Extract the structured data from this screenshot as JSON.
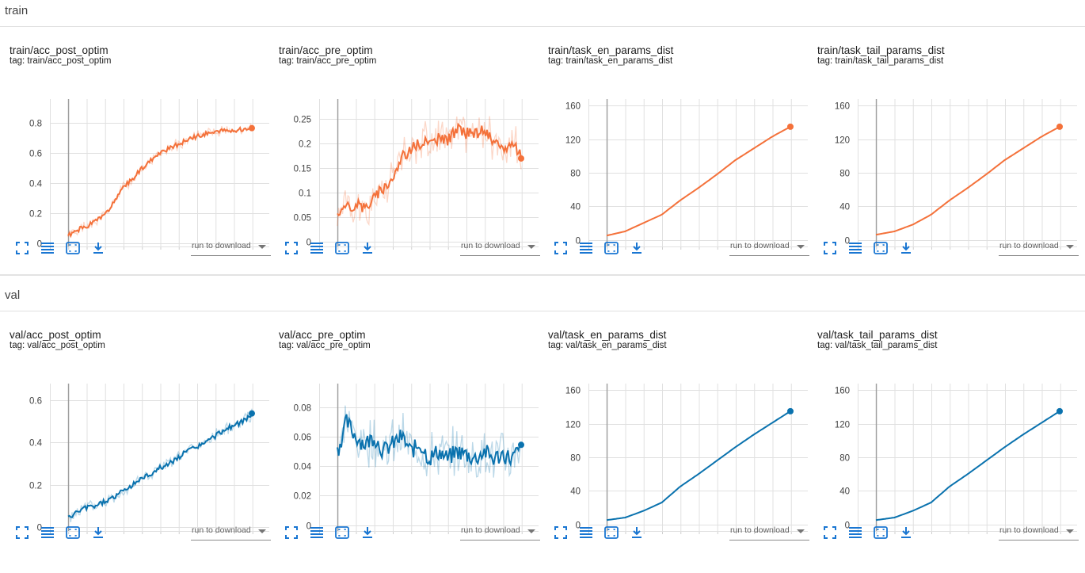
{
  "colors": {
    "train": "#f4713a",
    "val": "#0a72ae",
    "icon": "#1976d2"
  },
  "run_select_label": "run to download",
  "groups": [
    {
      "name": "train",
      "color": "#f4713a",
      "cards": [
        {
          "title": "train/acc_post_optim",
          "tag": "tag: train/acc_post_optim",
          "chart_data": {
            "type": "line",
            "yticks": [
              "0",
              "0.2",
              "0.4",
              "0.6",
              "0.8"
            ],
            "ymin": -0.02,
            "ymax": 0.96,
            "x": [
              0,
              0.05,
              0.1,
              0.15,
              0.2,
              0.25,
              0.3,
              0.35,
              0.4,
              0.45,
              0.5,
              0.55,
              0.6,
              0.65,
              0.7,
              0.75,
              0.8,
              0.85,
              0.9,
              0.95,
              1.0
            ],
            "y": [
              0.05,
              0.09,
              0.11,
              0.15,
              0.19,
              0.27,
              0.37,
              0.43,
              0.5,
              0.55,
              0.6,
              0.63,
              0.66,
              0.69,
              0.71,
              0.73,
              0.74,
              0.75,
              0.75,
              0.76,
              0.77
            ],
            "noise": 0.015,
            "raw_noise": 0.03,
            "seed": 1
          }
        },
        {
          "title": "train/acc_pre_optim",
          "tag": "tag: train/acc_pre_optim",
          "chart_data": {
            "type": "line",
            "yticks": [
              "0",
              "0.05",
              "0.1",
              "0.15",
              "0.2",
              "0.25"
            ],
            "ymin": -0.01,
            "ymax": 0.29,
            "x": [
              0,
              0.05,
              0.1,
              0.15,
              0.2,
              0.25,
              0.3,
              0.35,
              0.4,
              0.45,
              0.5,
              0.55,
              0.6,
              0.65,
              0.7,
              0.75,
              0.8,
              0.85,
              0.9,
              0.95,
              1.0
            ],
            "y": [
              0.06,
              0.07,
              0.075,
              0.07,
              0.09,
              0.11,
              0.13,
              0.17,
              0.19,
              0.2,
              0.2,
              0.21,
              0.205,
              0.23,
              0.22,
              0.22,
              0.23,
              0.2,
              0.19,
              0.2,
              0.175
            ],
            "noise": 0.012,
            "raw_noise": 0.035,
            "seed": 2
          }
        },
        {
          "title": "train/task_en_params_dist",
          "tag": "tag: train/task_en_params_dist",
          "chart_data": {
            "type": "line",
            "yticks": [
              "0",
              "40",
              "80",
              "120",
              "160"
            ],
            "ymin": -8,
            "ymax": 168,
            "x": [
              0,
              0.1,
              0.2,
              0.3,
              0.4,
              0.5,
              0.6,
              0.7,
              0.8,
              0.9,
              1.0
            ],
            "y": [
              5,
              10,
              20,
              30,
              47,
              62,
              78,
              95,
              109,
              123,
              135
            ],
            "noise": 0,
            "raw_noise": 0,
            "seed": 3
          }
        },
        {
          "title": "train/task_tail_params_dist",
          "tag": "tag: train/task_tail_params_dist",
          "chart_data": {
            "type": "line",
            "yticks": [
              "0",
              "40",
              "80",
              "120",
              "160"
            ],
            "ymin": -8,
            "ymax": 168,
            "x": [
              0,
              0.1,
              0.2,
              0.3,
              0.4,
              0.5,
              0.6,
              0.7,
              0.8,
              0.9,
              1.0
            ],
            "y": [
              6,
              10,
              18,
              30,
              47,
              62,
              78,
              95,
              109,
              123,
              135
            ],
            "noise": 0,
            "raw_noise": 0,
            "seed": 4
          }
        }
      ]
    },
    {
      "name": "val",
      "color": "#0a72ae",
      "cards": [
        {
          "title": "val/acc_post_optim",
          "tag": "tag: val/acc_post_optim",
          "chart_data": {
            "type": "line",
            "yticks": [
              "0",
              "0.2",
              "0.4",
              "0.6"
            ],
            "ymin": -0.02,
            "ymax": 0.68,
            "x": [
              0,
              0.05,
              0.1,
              0.15,
              0.2,
              0.25,
              0.3,
              0.35,
              0.4,
              0.45,
              0.5,
              0.55,
              0.6,
              0.65,
              0.7,
              0.75,
              0.8,
              0.85,
              0.9,
              0.95,
              1.0
            ],
            "y": [
              0.04,
              0.07,
              0.09,
              0.1,
              0.12,
              0.14,
              0.17,
              0.2,
              0.23,
              0.25,
              0.28,
              0.3,
              0.33,
              0.36,
              0.38,
              0.4,
              0.43,
              0.46,
              0.48,
              0.5,
              0.53
            ],
            "noise": 0.012,
            "raw_noise": 0.025,
            "seed": 5
          }
        },
        {
          "title": "val/acc_pre_optim",
          "tag": "tag: val/acc_pre_optim",
          "chart_data": {
            "type": "line",
            "yticks": [
              "0",
              "0.02",
              "0.04",
              "0.06",
              "0.08"
            ],
            "ymin": -0.004,
            "ymax": 0.096,
            "x": [
              0,
              0.05,
              0.1,
              0.15,
              0.2,
              0.25,
              0.3,
              0.35,
              0.4,
              0.45,
              0.5,
              0.55,
              0.6,
              0.65,
              0.7,
              0.75,
              0.8,
              0.85,
              0.9,
              0.95,
              1.0
            ],
            "y": [
              0.05,
              0.07,
              0.06,
              0.055,
              0.06,
              0.05,
              0.055,
              0.06,
              0.05,
              0.055,
              0.045,
              0.05,
              0.045,
              0.05,
              0.048,
              0.045,
              0.05,
              0.045,
              0.048,
              0.045,
              0.052
            ],
            "noise": 0.006,
            "raw_noise": 0.014,
            "seed": 6
          }
        },
        {
          "title": "val/task_en_params_dist",
          "tag": "tag: val/task_en_params_dist",
          "chart_data": {
            "type": "line",
            "yticks": [
              "0",
              "40",
              "80",
              "120",
              "160"
            ],
            "ymin": -8,
            "ymax": 168,
            "x": [
              0,
              0.1,
              0.2,
              0.3,
              0.4,
              0.5,
              0.6,
              0.7,
              0.8,
              0.9,
              1.0
            ],
            "y": [
              5,
              8,
              16,
              26,
              45,
              60,
              76,
              92,
              107,
              121,
              135
            ],
            "noise": 0,
            "raw_noise": 0,
            "seed": 7
          }
        },
        {
          "title": "val/task_tail_params_dist",
          "tag": "tag: val/task_tail_params_dist",
          "chart_data": {
            "type": "line",
            "yticks": [
              "0",
              "40",
              "80",
              "120",
              "160"
            ],
            "ymin": -8,
            "ymax": 168,
            "x": [
              0,
              0.1,
              0.2,
              0.3,
              0.4,
              0.5,
              0.6,
              0.7,
              0.8,
              0.9,
              1.0
            ],
            "y": [
              5,
              8,
              16,
              26,
              45,
              60,
              76,
              92,
              107,
              121,
              135
            ],
            "noise": 0,
            "raw_noise": 0,
            "seed": 8
          }
        }
      ]
    }
  ]
}
